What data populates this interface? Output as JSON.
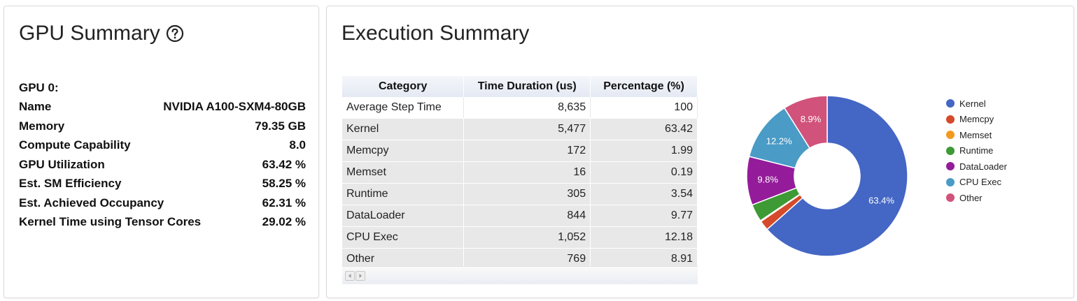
{
  "gpu_summary": {
    "title": "GPU Summary",
    "rows": [
      {
        "label": "GPU 0:",
        "value": ""
      },
      {
        "label": "Name",
        "value": "NVIDIA A100-SXM4-80GB"
      },
      {
        "label": "Memory",
        "value": "79.35 GB"
      },
      {
        "label": "Compute Capability",
        "value": "8.0"
      },
      {
        "label": "GPU Utilization",
        "value": "63.42 %"
      },
      {
        "label": "Est. SM Efficiency",
        "value": "58.25 %"
      },
      {
        "label": "Est. Achieved Occupancy",
        "value": "62.31 %"
      },
      {
        "label": "Kernel Time using Tensor Cores",
        "value": "29.02 %"
      }
    ]
  },
  "execution_summary": {
    "title": "Execution Summary",
    "table": {
      "headers": [
        "Category",
        "Time Duration (us)",
        "Percentage (%)"
      ],
      "rows": [
        [
          "Average Step Time",
          "8,635",
          "100"
        ],
        [
          "Kernel",
          "5,477",
          "63.42"
        ],
        [
          "Memcpy",
          "172",
          "1.99"
        ],
        [
          "Memset",
          "16",
          "0.19"
        ],
        [
          "Runtime",
          "305",
          "3.54"
        ],
        [
          "DataLoader",
          "844",
          "9.77"
        ],
        [
          "CPU Exec",
          "1,052",
          "12.18"
        ],
        [
          "Other",
          "769",
          "8.91"
        ]
      ]
    }
  },
  "chart_data": {
    "type": "pie",
    "donut": true,
    "categories": [
      "Kernel",
      "Memcpy",
      "Memset",
      "Runtime",
      "DataLoader",
      "CPU Exec",
      "Other"
    ],
    "values": [
      63.42,
      1.99,
      0.19,
      3.54,
      9.77,
      12.18,
      8.91
    ],
    "slice_labels": [
      "63.4%",
      "",
      "",
      "",
      "9.8%",
      "12.2%",
      "8.9%"
    ],
    "colors": [
      "#4466c4",
      "#d44a2a",
      "#f39a1e",
      "#3e9a35",
      "#941c9a",
      "#4a9bc6",
      "#d1527a"
    ],
    "legend": "right"
  }
}
